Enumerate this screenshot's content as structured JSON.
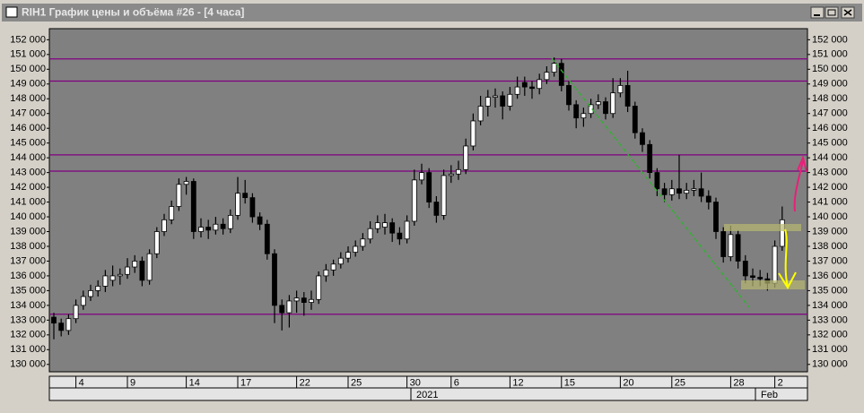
{
  "chart_data": {
    "type": "candlestick",
    "title": "RIH1 График цены и объёма #26 - [4 часа]",
    "up_color": "#ffffff",
    "down_color": "#000000",
    "level_color": "#800080",
    "levels": [
      150700,
      149200,
      144200,
      143100,
      133400
    ],
    "ylim": [
      129500,
      152750
    ],
    "yticks": [
      {
        "value": 130000,
        "label": "130 000"
      },
      {
        "value": 131000,
        "label": "131 000"
      },
      {
        "value": 132000,
        "label": "132 000"
      },
      {
        "value": 133000,
        "label": "133 000"
      },
      {
        "value": 134000,
        "label": "134 000"
      },
      {
        "value": 135000,
        "label": "135 000"
      },
      {
        "value": 136000,
        "label": "136 000"
      },
      {
        "value": 137000,
        "label": "137 000"
      },
      {
        "value": 138000,
        "label": "138 000"
      },
      {
        "value": 139000,
        "label": "139 000"
      },
      {
        "value": 140000,
        "label": "140 000"
      },
      {
        "value": 141000,
        "label": "141 000"
      },
      {
        "value": 142000,
        "label": "142 000"
      },
      {
        "value": 143000,
        "label": "143 000"
      },
      {
        "value": 144000,
        "label": "144 000"
      },
      {
        "value": 145000,
        "label": "145 000"
      },
      {
        "value": 146000,
        "label": "146 000"
      },
      {
        "value": 147000,
        "label": "147 000"
      },
      {
        "value": 148000,
        "label": "148 000"
      },
      {
        "value": 149000,
        "label": "149 000"
      },
      {
        "value": 150000,
        "label": "150 000"
      },
      {
        "value": 151000,
        "label": "151 000"
      },
      {
        "value": 152000,
        "label": "152 000"
      }
    ],
    "period_labels": [
      "2021",
      "Feb"
    ],
    "categories": [
      null,
      null,
      null,
      "4",
      null,
      null,
      null,
      null,
      null,
      null,
      "9",
      null,
      null,
      null,
      null,
      null,
      null,
      null,
      "14",
      null,
      null,
      null,
      null,
      null,
      null,
      "17",
      null,
      null,
      null,
      null,
      null,
      null,
      null,
      "22",
      null,
      null,
      null,
      null,
      null,
      null,
      "25",
      null,
      null,
      null,
      null,
      null,
      null,
      null,
      "30",
      null,
      null,
      null,
      null,
      null,
      "6",
      null,
      null,
      null,
      null,
      null,
      null,
      null,
      "12",
      null,
      null,
      null,
      null,
      null,
      null,
      "15",
      null,
      null,
      null,
      null,
      null,
      null,
      null,
      "20",
      null,
      null,
      null,
      null,
      null,
      null,
      "25",
      null,
      null,
      null,
      null,
      null,
      null,
      null,
      "28",
      null,
      null,
      null,
      null,
      null,
      "2",
      null
    ],
    "open": [
      133200,
      132800,
      132300,
      133100,
      134000,
      134600,
      135000,
      135300,
      135700,
      136000,
      136100,
      136600,
      137000,
      135700,
      137500,
      139000,
      139800,
      140700,
      142200,
      142400,
      139000,
      139300,
      139100,
      139500,
      139200,
      140100,
      141600,
      141300,
      140000,
      139500,
      137500,
      134000,
      133500,
      134300,
      134500,
      134200,
      134400,
      136000,
      136400,
      136800,
      137200,
      137600,
      138000,
      138500,
      139200,
      139300,
      139600,
      138900,
      138500,
      139700,
      142500,
      143000,
      141000,
      140100,
      142800,
      142900,
      143200,
      144800,
      146500,
      147500,
      148100,
      148200,
      147500,
      148300,
      149100,
      148800,
      148700,
      149300,
      149800,
      150400,
      148900,
      147600,
      146700,
      147000,
      147600,
      147800,
      147000,
      148400,
      148900,
      147500,
      145700,
      144900,
      143000,
      141900,
      141500,
      141900,
      141600,
      141800,
      141900,
      141400,
      141000,
      139000,
      137300,
      138800,
      137000,
      136000,
      135900,
      135800,
      135500,
      138000
    ],
    "high": [
      133500,
      133100,
      133400,
      134400,
      135000,
      135400,
      135700,
      136400,
      136700,
      136500,
      137200,
      137400,
      137300,
      137800,
      139300,
      140200,
      141100,
      142600,
      142700,
      142600,
      139900,
      139800,
      140000,
      139900,
      140500,
      142700,
      142500,
      141600,
      140300,
      139800,
      137800,
      134400,
      134700,
      135000,
      134900,
      135000,
      136300,
      136800,
      137100,
      137600,
      138000,
      138400,
      138900,
      139700,
      140100,
      140200,
      139900,
      139300,
      140100,
      143200,
      143600,
      143300,
      141400,
      143200,
      143500,
      143800,
      145300,
      147000,
      148200,
      148600,
      148700,
      148500,
      148800,
      149500,
      149500,
      149200,
      149700,
      150200,
      150800,
      150700,
      149200,
      147900,
      147400,
      148000,
      148300,
      148100,
      149400,
      149400,
      149900,
      147800,
      146000,
      145200,
      143300,
      142300,
      142500,
      144200,
      142300,
      142500,
      143000,
      141800,
      141300,
      139300,
      139400,
      139100,
      137400,
      136500,
      136400,
      136200,
      138400,
      140700
    ],
    "low": [
      131700,
      131900,
      132000,
      132800,
      133700,
      134300,
      134600,
      134900,
      135300,
      135400,
      135800,
      136200,
      135300,
      135400,
      137200,
      138700,
      139500,
      140400,
      141500,
      138500,
      138600,
      138500,
      138800,
      138800,
      138900,
      139800,
      140900,
      139600,
      139100,
      137100,
      132800,
      132300,
      132500,
      133500,
      133300,
      133700,
      134100,
      135600,
      136000,
      136500,
      136900,
      137300,
      137700,
      138200,
      138900,
      138800,
      138300,
      138100,
      138200,
      139400,
      142200,
      140600,
      139600,
      139800,
      142300,
      142500,
      142900,
      144500,
      146200,
      146800,
      147400,
      146600,
      147200,
      148000,
      148200,
      148000,
      148300,
      149000,
      149500,
      148500,
      147200,
      146000,
      146100,
      146700,
      147300,
      146600,
      146700,
      148100,
      147100,
      145300,
      144400,
      142600,
      141400,
      141000,
      141100,
      141200,
      141200,
      141400,
      141000,
      140500,
      138500,
      136900,
      137000,
      136500,
      135500,
      135300,
      135300,
      135000,
      135200,
      137700
    ],
    "close": [
      132800,
      132300,
      133100,
      134000,
      134600,
      135000,
      135300,
      136000,
      136000,
      136100,
      136600,
      137000,
      135700,
      137500,
      139000,
      139800,
      140700,
      142200,
      142400,
      139000,
      139300,
      139100,
      139500,
      139200,
      140100,
      141600,
      141300,
      140000,
      139500,
      137500,
      134000,
      133500,
      134300,
      134500,
      134200,
      134400,
      136000,
      136400,
      136800,
      137200,
      137600,
      138000,
      138500,
      139200,
      139600,
      139600,
      138900,
      138500,
      139700,
      142500,
      143000,
      141000,
      140100,
      142800,
      142900,
      143200,
      144800,
      146500,
      147500,
      148100,
      148200,
      147500,
      148300,
      148800,
      148800,
      148700,
      149300,
      149800,
      150400,
      148900,
      147600,
      146700,
      147000,
      147600,
      147800,
      147000,
      148400,
      148900,
      147500,
      145700,
      144900,
      143000,
      141900,
      141500,
      141900,
      141600,
      141800,
      141900,
      141400,
      141000,
      139000,
      137300,
      138800,
      137000,
      136000,
      135900,
      135800,
      135500,
      138000,
      139800
    ]
  }
}
